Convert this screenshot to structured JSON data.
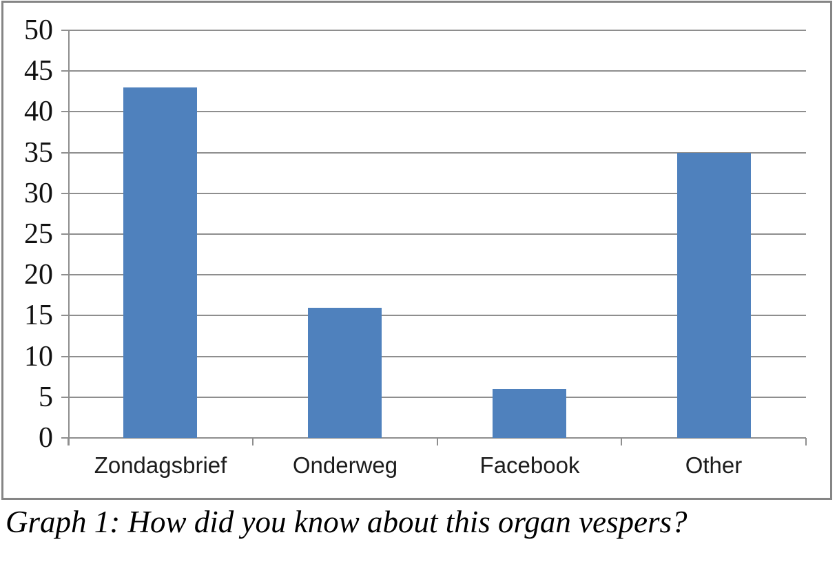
{
  "caption": "Graph 1: How did you know about this organ vespers?",
  "colors": {
    "bar": "#4F81BD",
    "gridline": "#8E8E8E",
    "frame_border": "#858585",
    "text": "#111111",
    "background": "#FFFFFF"
  },
  "chart_data": {
    "type": "bar",
    "categories": [
      "Zondagsbrief",
      "Onderweg",
      "Facebook",
      "Other"
    ],
    "values": [
      43,
      16,
      6,
      35
    ],
    "title": "",
    "xlabel": "",
    "ylabel": "",
    "ylim": [
      0,
      50
    ],
    "ytick_step": 5,
    "ytick_labels": [
      "0",
      "5",
      "10",
      "15",
      "20",
      "25",
      "30",
      "35",
      "40",
      "45",
      "50"
    ],
    "grid": true,
    "legend": "none",
    "bar_color": "#4F81BD",
    "caption_below": "Graph 1: How did you know about this organ vespers?"
  }
}
